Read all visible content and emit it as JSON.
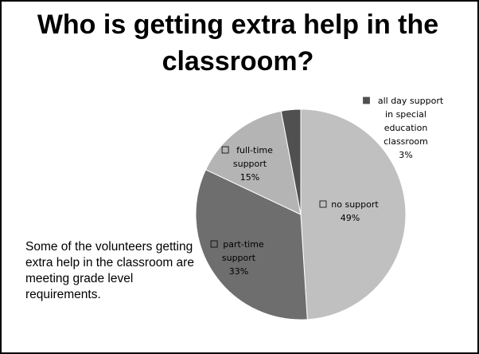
{
  "slide": {
    "title_line1": "Who is getting extra help in the",
    "title_line2": "classroom?",
    "caption": "Some of the volunteers getting extra help in the classroom are meeting grade level requirements."
  },
  "chart_data": {
    "type": "pie",
    "start_angle_deg": 0,
    "direction": "clockwise",
    "slices": [
      {
        "label": [
          "no support"
        ],
        "pct_label": "49%",
        "value": 49,
        "color": "#c0c0c0",
        "swatch": "open"
      },
      {
        "label": [
          "part-time",
          "support"
        ],
        "pct_label": "33%",
        "value": 33,
        "color": "#6e6e6e",
        "swatch": "open"
      },
      {
        "label": [
          "full-time",
          "support"
        ],
        "pct_label": "15%",
        "value": 15,
        "color": "#b4b4b4",
        "swatch": "open"
      },
      {
        "label": [
          "all day support",
          "in special",
          "education",
          "classroom"
        ],
        "pct_label": "3%",
        "value": 3,
        "color": "#505050",
        "swatch": "filled"
      }
    ]
  }
}
